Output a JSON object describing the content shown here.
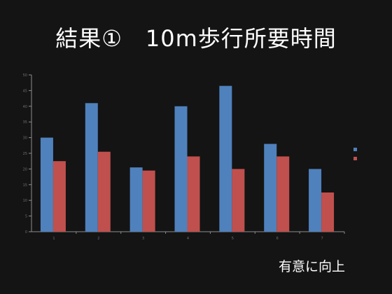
{
  "slide": {
    "title": "結果①　10m歩行所要時間",
    "note": "有意に向上"
  },
  "colors": {
    "background": "#141414",
    "series_blue": "#4f81bd",
    "series_red": "#c0504d",
    "axis": "#8c8c8c",
    "tick_text": "#6f6f6f"
  },
  "chart_data": {
    "type": "bar",
    "categories": [
      "1",
      "2",
      "3",
      "4",
      "5",
      "6",
      "7"
    ],
    "series": [
      {
        "color": "#4f81bd",
        "values": [
          30,
          41,
          20.5,
          40,
          46.5,
          28,
          20
        ]
      },
      {
        "color": "#c0504d",
        "values": [
          22.5,
          25.5,
          19.5,
          24,
          20,
          24,
          12.5
        ]
      }
    ],
    "yticks": [
      0,
      5,
      10,
      15,
      20,
      25,
      30,
      35,
      40,
      45,
      50
    ],
    "ylim": [
      0,
      50
    ],
    "grid": false,
    "legend_position": "right",
    "legend_labels": [
      "",
      ""
    ]
  }
}
